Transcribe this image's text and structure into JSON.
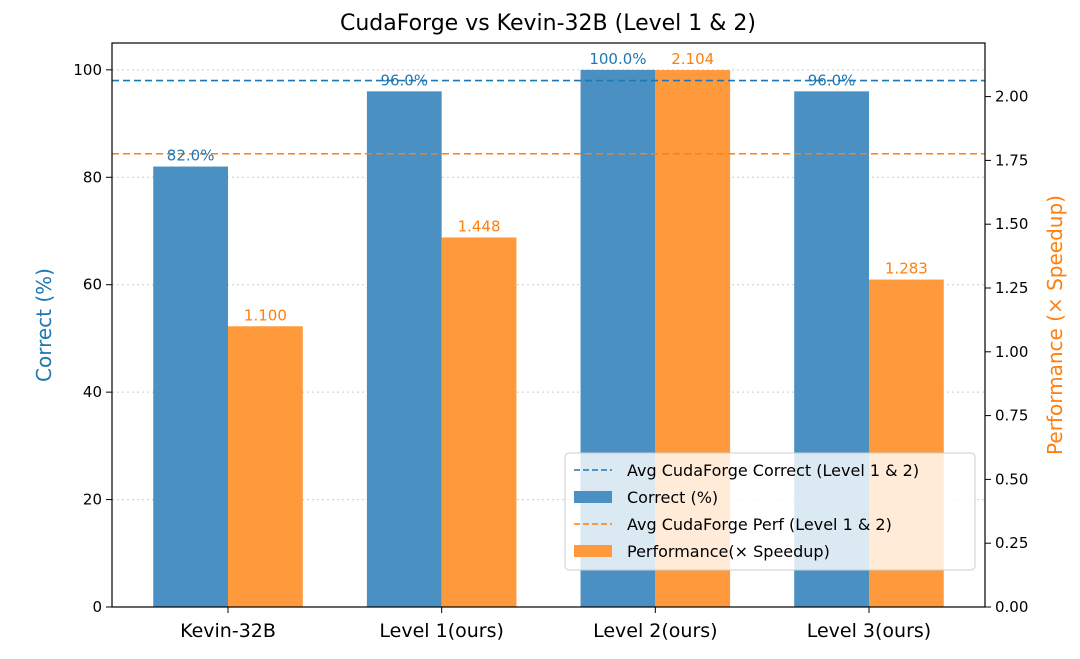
{
  "chart_data": {
    "type": "bar",
    "title": "CudaForge vs Kevin-32B (Level 1 & 2)",
    "categories": [
      "Kevin-32B",
      "Level 1(ours)",
      "Level 2(ours)",
      "Level 3(ours)"
    ],
    "series": [
      {
        "name": "Correct (%)",
        "axis": "left",
        "values": [
          82.0,
          96.0,
          100.0,
          96.0
        ],
        "labels": [
          "82.0%",
          "96.0%",
          "100.0%",
          "96.0%"
        ],
        "color": "#4a90c2",
        "label_color": "#1f77b4"
      },
      {
        "name": "Performance(× Speedup)",
        "axis": "right",
        "values": [
          1.1,
          1.448,
          2.104,
          1.283
        ],
        "labels": [
          "1.100",
          "1.448",
          "2.104",
          "1.283"
        ],
        "color": "#ff9a3c",
        "label_color": "#ff7f0e"
      }
    ],
    "reference_lines": [
      {
        "name": "Avg CudaForge Correct (Level 1 & 2)",
        "axis": "left",
        "value": 98.0,
        "color": "#1f77b4",
        "style": "dashed"
      },
      {
        "name": "Avg CudaForge Perf (Level 1 & 2)",
        "axis": "right",
        "value": 1.776,
        "color": "#ff7f0e",
        "style": "dashed"
      }
    ],
    "ylabel_left": "Correct (%)",
    "ylabel_right": "Performance (× Speedup)",
    "ylim_left": [
      0,
      105
    ],
    "ylim_right": [
      0,
      2.21
    ],
    "yticks_left": [
      "0",
      "20",
      "40",
      "60",
      "80",
      "100"
    ],
    "yticks_right": [
      "0.00",
      "0.25",
      "0.50",
      "0.75",
      "1.00",
      "1.25",
      "1.50",
      "1.75",
      "2.00"
    ],
    "grid": "horizontal dotted (left axis)",
    "legend_position": "lower-right",
    "legend": [
      "Avg CudaForge Correct (Level 1 & 2)",
      "Correct (%)",
      "Avg CudaForge Perf (Level 1 & 2)",
      "Performance(× Speedup)"
    ]
  }
}
